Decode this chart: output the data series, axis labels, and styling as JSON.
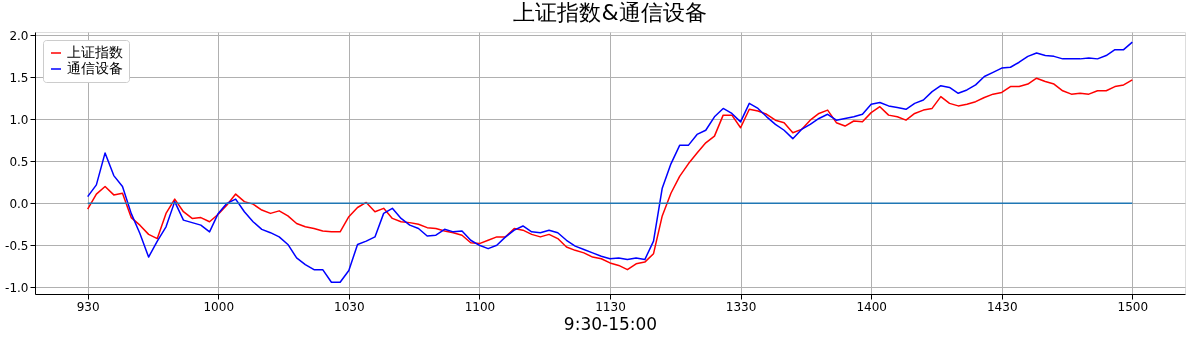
{
  "chart_data": {
    "type": "line",
    "title": "上证指数&通信设备",
    "xlabel": "9:30-15:00",
    "categories": [
      "930",
      null,
      null,
      null,
      null,
      null,
      null,
      null,
      null,
      null,
      null,
      null,
      null,
      null,
      null,
      "1000",
      null,
      null,
      null,
      null,
      null,
      null,
      null,
      null,
      null,
      null,
      null,
      null,
      null,
      null,
      "1030",
      null,
      null,
      null,
      null,
      null,
      null,
      null,
      null,
      null,
      null,
      null,
      null,
      null,
      null,
      "1100",
      null,
      null,
      null,
      null,
      null,
      null,
      null,
      null,
      null,
      null,
      null,
      null,
      null,
      null,
      "1130",
      null,
      null,
      null,
      null,
      null,
      null,
      null,
      null,
      null,
      null,
      null,
      null,
      null,
      null,
      "1330",
      null,
      null,
      null,
      null,
      null,
      null,
      null,
      null,
      null,
      null,
      null,
      null,
      null,
      null,
      "1400",
      null,
      null,
      null,
      null,
      null,
      null,
      null,
      null,
      null,
      null,
      null,
      null,
      null,
      null,
      "1430",
      null,
      null,
      null,
      null,
      null,
      null,
      null,
      null,
      null,
      null,
      null,
      null,
      null,
      null,
      "1500"
    ],
    "ylim": [
      -1.08,
      2.04
    ],
    "yticks": [
      {
        "value": -1,
        "label": "-1.0"
      },
      {
        "value": -0.5,
        "label": "-0.5"
      },
      {
        "value": 0,
        "label": "0.0"
      },
      {
        "value": 0.5,
        "label": "0.5"
      },
      {
        "value": 1,
        "label": "1.0"
      },
      {
        "value": 1.5,
        "label": "1.5"
      },
      {
        "value": 2,
        "label": "2.0"
      }
    ],
    "grid": true,
    "legend": "top left",
    "line_style": "solid",
    "series": [
      {
        "name": "上证指数",
        "color": "#ff0000",
        "values": [
          -0.07,
          0.11,
          0.2,
          0.1,
          0.12,
          -0.17,
          -0.26,
          -0.37,
          -0.42,
          -0.12,
          0.05,
          -0.1,
          -0.18,
          -0.17,
          -0.22,
          -0.13,
          -0.02,
          0.11,
          0.02,
          -0.01,
          -0.08,
          -0.12,
          -0.09,
          -0.15,
          -0.24,
          -0.28,
          -0.3,
          -0.33,
          -0.34,
          -0.34,
          -0.16,
          -0.05,
          0.01,
          -0.1,
          -0.06,
          -0.18,
          -0.22,
          -0.23,
          -0.25,
          -0.29,
          -0.3,
          -0.33,
          -0.35,
          -0.38,
          -0.47,
          -0.48,
          -0.44,
          -0.4,
          -0.4,
          -0.3,
          -0.32,
          -0.37,
          -0.4,
          -0.37,
          -0.42,
          -0.52,
          -0.56,
          -0.59,
          -0.64,
          -0.66,
          -0.71,
          -0.74,
          -0.79,
          -0.72,
          -0.7,
          -0.6,
          -0.15,
          0.12,
          0.32,
          0.47,
          0.6,
          0.72,
          0.8,
          1.05,
          1.05,
          0.9,
          1.12,
          1.1,
          1.06,
          0.99,
          0.96,
          0.84,
          0.88,
          0.99,
          1.07,
          1.11,
          0.96,
          0.92,
          0.98,
          0.97,
          1.08,
          1.15,
          1.05,
          1.03,
          0.99,
          1.07,
          1.11,
          1.13,
          1.27,
          1.19,
          1.16,
          1.18,
          1.21,
          1.26,
          1.3,
          1.32,
          1.39,
          1.39,
          1.42,
          1.49,
          1.45,
          1.42,
          1.34,
          1.3,
          1.31,
          1.3,
          1.34,
          1.34,
          1.39,
          1.41,
          1.47
        ]
      },
      {
        "name": "通信设备",
        "color": "#0000ff",
        "values": [
          0.08,
          0.22,
          0.6,
          0.33,
          0.2,
          -0.12,
          -0.36,
          -0.64,
          -0.45,
          -0.28,
          0.02,
          -0.2,
          -0.23,
          -0.26,
          -0.34,
          -0.12,
          0.0,
          0.05,
          -0.1,
          -0.22,
          -0.31,
          -0.35,
          -0.4,
          -0.49,
          -0.65,
          -0.73,
          -0.79,
          -0.79,
          -0.94,
          -0.94,
          -0.8,
          -0.49,
          -0.45,
          -0.4,
          -0.12,
          -0.06,
          -0.18,
          -0.26,
          -0.3,
          -0.39,
          -0.38,
          -0.31,
          -0.34,
          -0.33,
          -0.44,
          -0.5,
          -0.54,
          -0.5,
          -0.4,
          -0.32,
          -0.27,
          -0.34,
          -0.35,
          -0.32,
          -0.35,
          -0.44,
          -0.51,
          -0.55,
          -0.59,
          -0.63,
          -0.66,
          -0.65,
          -0.67,
          -0.65,
          -0.67,
          -0.45,
          0.18,
          0.47,
          0.69,
          0.69,
          0.82,
          0.87,
          1.03,
          1.13,
          1.07,
          0.97,
          1.19,
          1.13,
          1.03,
          0.94,
          0.87,
          0.77,
          0.88,
          0.94,
          1.01,
          1.06,
          0.99,
          1.01,
          1.03,
          1.06,
          1.18,
          1.2,
          1.16,
          1.14,
          1.12,
          1.19,
          1.23,
          1.33,
          1.4,
          1.38,
          1.31,
          1.35,
          1.41,
          1.51,
          1.56,
          1.61,
          1.62,
          1.68,
          1.75,
          1.79,
          1.76,
          1.75,
          1.72,
          1.72,
          1.72,
          1.73,
          1.72,
          1.76,
          1.83,
          1.83,
          1.92
        ]
      },
      {
        "color": "#1f77b4",
        "values": [
          0,
          0,
          0,
          0,
          0,
          0,
          0,
          0,
          0,
          0,
          0,
          0,
          0,
          0,
          0,
          0,
          0,
          0,
          0,
          0,
          0,
          0,
          0,
          0,
          0,
          0,
          0,
          0,
          0,
          0,
          0,
          0,
          0,
          0,
          0,
          0,
          0,
          0,
          0,
          0,
          0,
          0,
          0,
          0,
          0,
          0,
          0,
          0,
          0,
          0,
          0,
          0,
          0,
          0,
          0,
          0,
          0,
          0,
          0,
          0,
          0,
          0,
          0,
          0,
          0,
          0,
          0,
          0,
          0,
          0,
          0,
          0,
          0,
          0,
          0,
          0,
          0,
          0,
          0,
          0,
          0,
          0,
          0,
          0,
          0,
          0,
          0,
          0,
          0,
          0,
          0,
          0,
          0,
          0,
          0,
          0,
          0,
          0,
          0,
          0,
          0,
          0,
          0,
          0,
          0,
          0,
          0,
          0,
          0,
          0,
          0,
          0,
          0,
          0,
          0,
          0,
          0,
          0,
          0,
          0,
          0
        ]
      }
    ]
  }
}
